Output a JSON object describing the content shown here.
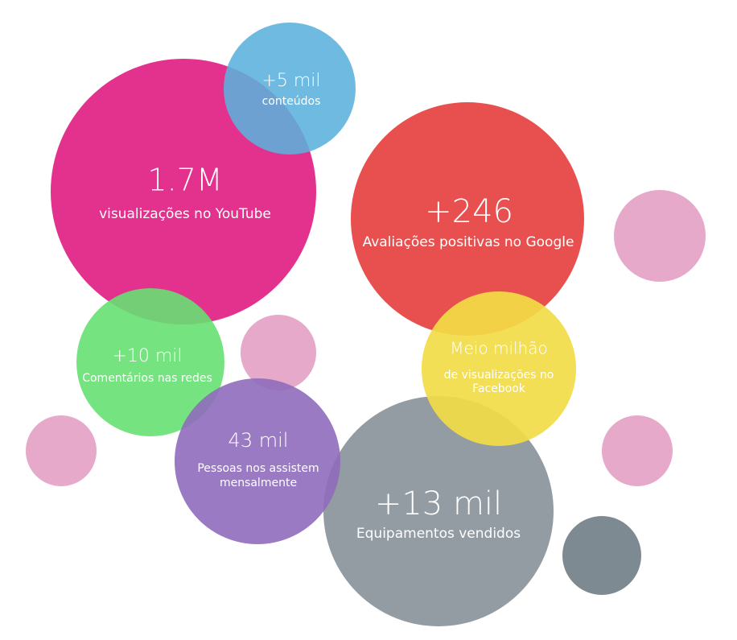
{
  "bubbles": [
    {
      "value": "1.7M",
      "label": [
        "visualizações no YouTube"
      ]
    },
    {
      "value": "+5 mil",
      "label": [
        "conteúdos"
      ]
    },
    {
      "value": "+246",
      "label": [
        "Avaliações positivas no Google"
      ]
    },
    {
      "value": "+10 mil",
      "label": [
        "Comentários nas redes"
      ]
    },
    {
      "value": "Meio milhão",
      "label": [
        "de visualizações no",
        "Facebook"
      ]
    },
    {
      "value": "43 mil",
      "label": [
        "Pessoas nos assistem",
        "mensalmente"
      ]
    },
    {
      "value": "+13 mil",
      "label": [
        "Equipamentos vendidos"
      ]
    }
  ]
}
